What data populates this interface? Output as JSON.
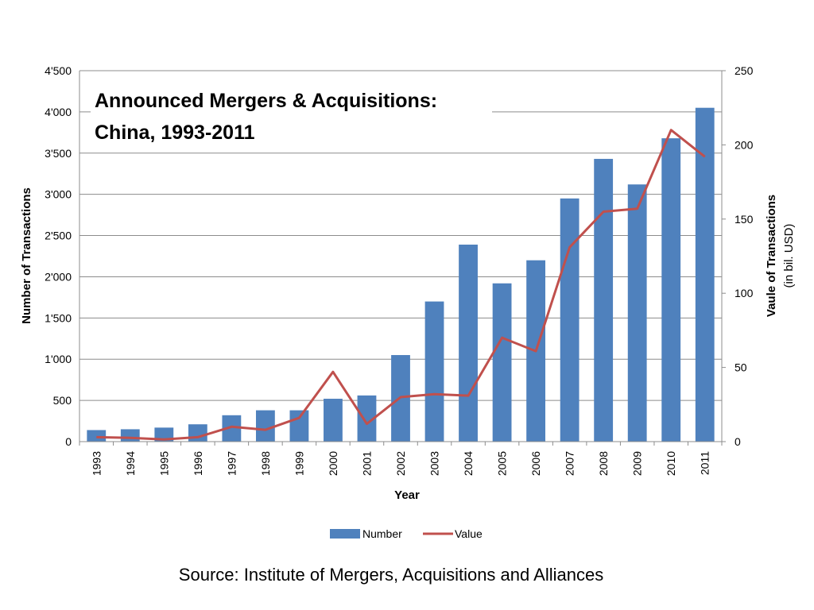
{
  "chart_data": {
    "type": "bar",
    "title_lines": [
      "Announced Mergers & Acquisitions:",
      "China, 1993-2011"
    ],
    "xlabel": "Year",
    "ylabel_left": "Number of Transactions",
    "ylabel_right_lines": [
      "Vaule of Transactions",
      "(in bil. USD)"
    ],
    "categories": [
      "1993",
      "1994",
      "1995",
      "1996",
      "1997",
      "1998",
      "1999",
      "2000",
      "2001",
      "2002",
      "2003",
      "2004",
      "2005",
      "2006",
      "2007",
      "2008",
      "2009",
      "2010",
      "2011"
    ],
    "series": [
      {
        "name": "Number",
        "type": "bar",
        "axis": "left",
        "color": "#4F81BD",
        "values": [
          140,
          150,
          170,
          210,
          320,
          380,
          380,
          520,
          560,
          1050,
          1700,
          2390,
          1920,
          2200,
          2950,
          3430,
          3120,
          3680,
          4050
        ]
      },
      {
        "name": "Value",
        "type": "line",
        "axis": "right",
        "color": "#C0504D",
        "values": [
          3,
          2.5,
          1.5,
          3,
          10,
          8,
          16,
          47,
          12,
          30,
          32,
          31,
          70,
          61,
          131,
          155,
          157,
          210,
          192
        ]
      }
    ],
    "ylim_left": [
      0,
      4500
    ],
    "yticks_left": [
      "0",
      "500",
      "1'000",
      "1'500",
      "2'000",
      "2'500",
      "3'000",
      "3'500",
      "4'000",
      "4'500"
    ],
    "ylim_right": [
      0,
      250
    ],
    "yticks_right": [
      "0",
      "50",
      "100",
      "150",
      "200",
      "250"
    ],
    "grid": true,
    "legend_position": "bottom"
  },
  "source": "Source:  Institute of Mergers, Acquisitions and Alliances"
}
